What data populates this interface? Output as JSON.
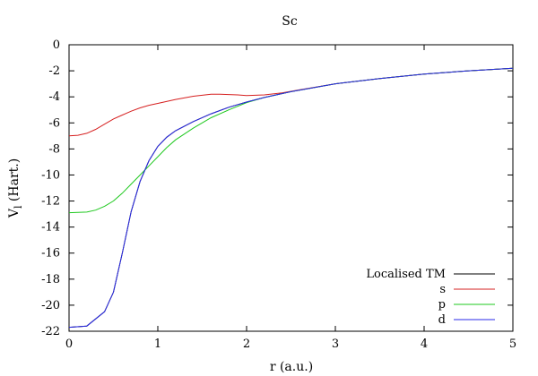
{
  "chart_data": {
    "type": "line",
    "title": "Sc",
    "xlabel": "r (a.u.)",
    "ylabel_main": "V",
    "ylabel_sub": "l",
    "ylabel_rest": " (Hart.)",
    "xlim": [
      0,
      5
    ],
    "ylim": [
      -22,
      0
    ],
    "xticks": [
      0,
      1,
      2,
      3,
      4,
      5
    ],
    "yticks": [
      0,
      -2,
      -4,
      -6,
      -8,
      -10,
      -12,
      -14,
      -16,
      -18,
      -20,
      -22
    ],
    "grid": false,
    "legend_position": "bottom-right",
    "series": [
      {
        "name": "Localised TM",
        "color": "#000000",
        "points": [
          [
            0.0,
            -21.7
          ],
          [
            0.2,
            -21.6
          ],
          [
            0.4,
            -20.5
          ],
          [
            0.5,
            -19.0
          ],
          [
            0.6,
            -16.0
          ],
          [
            0.7,
            -12.8
          ],
          [
            0.8,
            -10.5
          ],
          [
            0.9,
            -8.9
          ],
          [
            1.0,
            -7.8
          ],
          [
            1.1,
            -7.1
          ],
          [
            1.2,
            -6.6
          ],
          [
            1.4,
            -5.9
          ],
          [
            1.6,
            -5.3
          ],
          [
            1.8,
            -4.8
          ],
          [
            2.0,
            -4.4
          ],
          [
            2.2,
            -4.05
          ],
          [
            2.5,
            -3.6
          ],
          [
            3.0,
            -3.0
          ],
          [
            3.5,
            -2.6
          ],
          [
            4.0,
            -2.25
          ],
          [
            4.5,
            -2.0
          ],
          [
            5.0,
            -1.8
          ]
        ]
      },
      {
        "name": "s",
        "color": "#d62020",
        "points": [
          [
            0.0,
            -7.0
          ],
          [
            0.1,
            -6.95
          ],
          [
            0.2,
            -6.8
          ],
          [
            0.3,
            -6.5
          ],
          [
            0.4,
            -6.1
          ],
          [
            0.5,
            -5.7
          ],
          [
            0.6,
            -5.4
          ],
          [
            0.7,
            -5.1
          ],
          [
            0.8,
            -4.85
          ],
          [
            0.9,
            -4.65
          ],
          [
            1.0,
            -4.5
          ],
          [
            1.2,
            -4.2
          ],
          [
            1.4,
            -3.95
          ],
          [
            1.6,
            -3.8
          ],
          [
            1.7,
            -3.8
          ],
          [
            1.8,
            -3.82
          ],
          [
            1.9,
            -3.85
          ],
          [
            2.0,
            -3.9
          ],
          [
            2.2,
            -3.85
          ],
          [
            2.4,
            -3.7
          ],
          [
            2.6,
            -3.45
          ],
          [
            3.0,
            -3.0
          ],
          [
            3.5,
            -2.6
          ],
          [
            4.0,
            -2.25
          ],
          [
            4.5,
            -2.0
          ],
          [
            5.0,
            -1.8
          ]
        ]
      },
      {
        "name": "p",
        "color": "#1ec81e",
        "points": [
          [
            0.0,
            -12.9
          ],
          [
            0.2,
            -12.85
          ],
          [
            0.3,
            -12.7
          ],
          [
            0.4,
            -12.4
          ],
          [
            0.5,
            -12.0
          ],
          [
            0.6,
            -11.4
          ],
          [
            0.7,
            -10.7
          ],
          [
            0.8,
            -10.0
          ],
          [
            0.9,
            -9.3
          ],
          [
            1.0,
            -8.6
          ],
          [
            1.1,
            -7.9
          ],
          [
            1.2,
            -7.3
          ],
          [
            1.4,
            -6.4
          ],
          [
            1.6,
            -5.6
          ],
          [
            1.8,
            -5.0
          ],
          [
            2.0,
            -4.45
          ],
          [
            2.2,
            -4.05
          ],
          [
            2.5,
            -3.6
          ],
          [
            3.0,
            -3.0
          ],
          [
            3.5,
            -2.6
          ],
          [
            4.0,
            -2.25
          ],
          [
            4.5,
            -2.0
          ],
          [
            5.0,
            -1.8
          ]
        ]
      },
      {
        "name": "d",
        "color": "#2a2ae8",
        "points": [
          [
            0.0,
            -21.7
          ],
          [
            0.2,
            -21.6
          ],
          [
            0.4,
            -20.5
          ],
          [
            0.5,
            -19.0
          ],
          [
            0.6,
            -16.0
          ],
          [
            0.7,
            -12.8
          ],
          [
            0.8,
            -10.5
          ],
          [
            0.9,
            -8.9
          ],
          [
            1.0,
            -7.8
          ],
          [
            1.1,
            -7.1
          ],
          [
            1.2,
            -6.6
          ],
          [
            1.4,
            -5.9
          ],
          [
            1.6,
            -5.3
          ],
          [
            1.8,
            -4.8
          ],
          [
            2.0,
            -4.4
          ],
          [
            2.2,
            -4.05
          ],
          [
            2.5,
            -3.6
          ],
          [
            3.0,
            -3.0
          ],
          [
            3.5,
            -2.6
          ],
          [
            4.0,
            -2.25
          ],
          [
            4.5,
            -2.0
          ],
          [
            5.0,
            -1.8
          ]
        ]
      }
    ]
  }
}
